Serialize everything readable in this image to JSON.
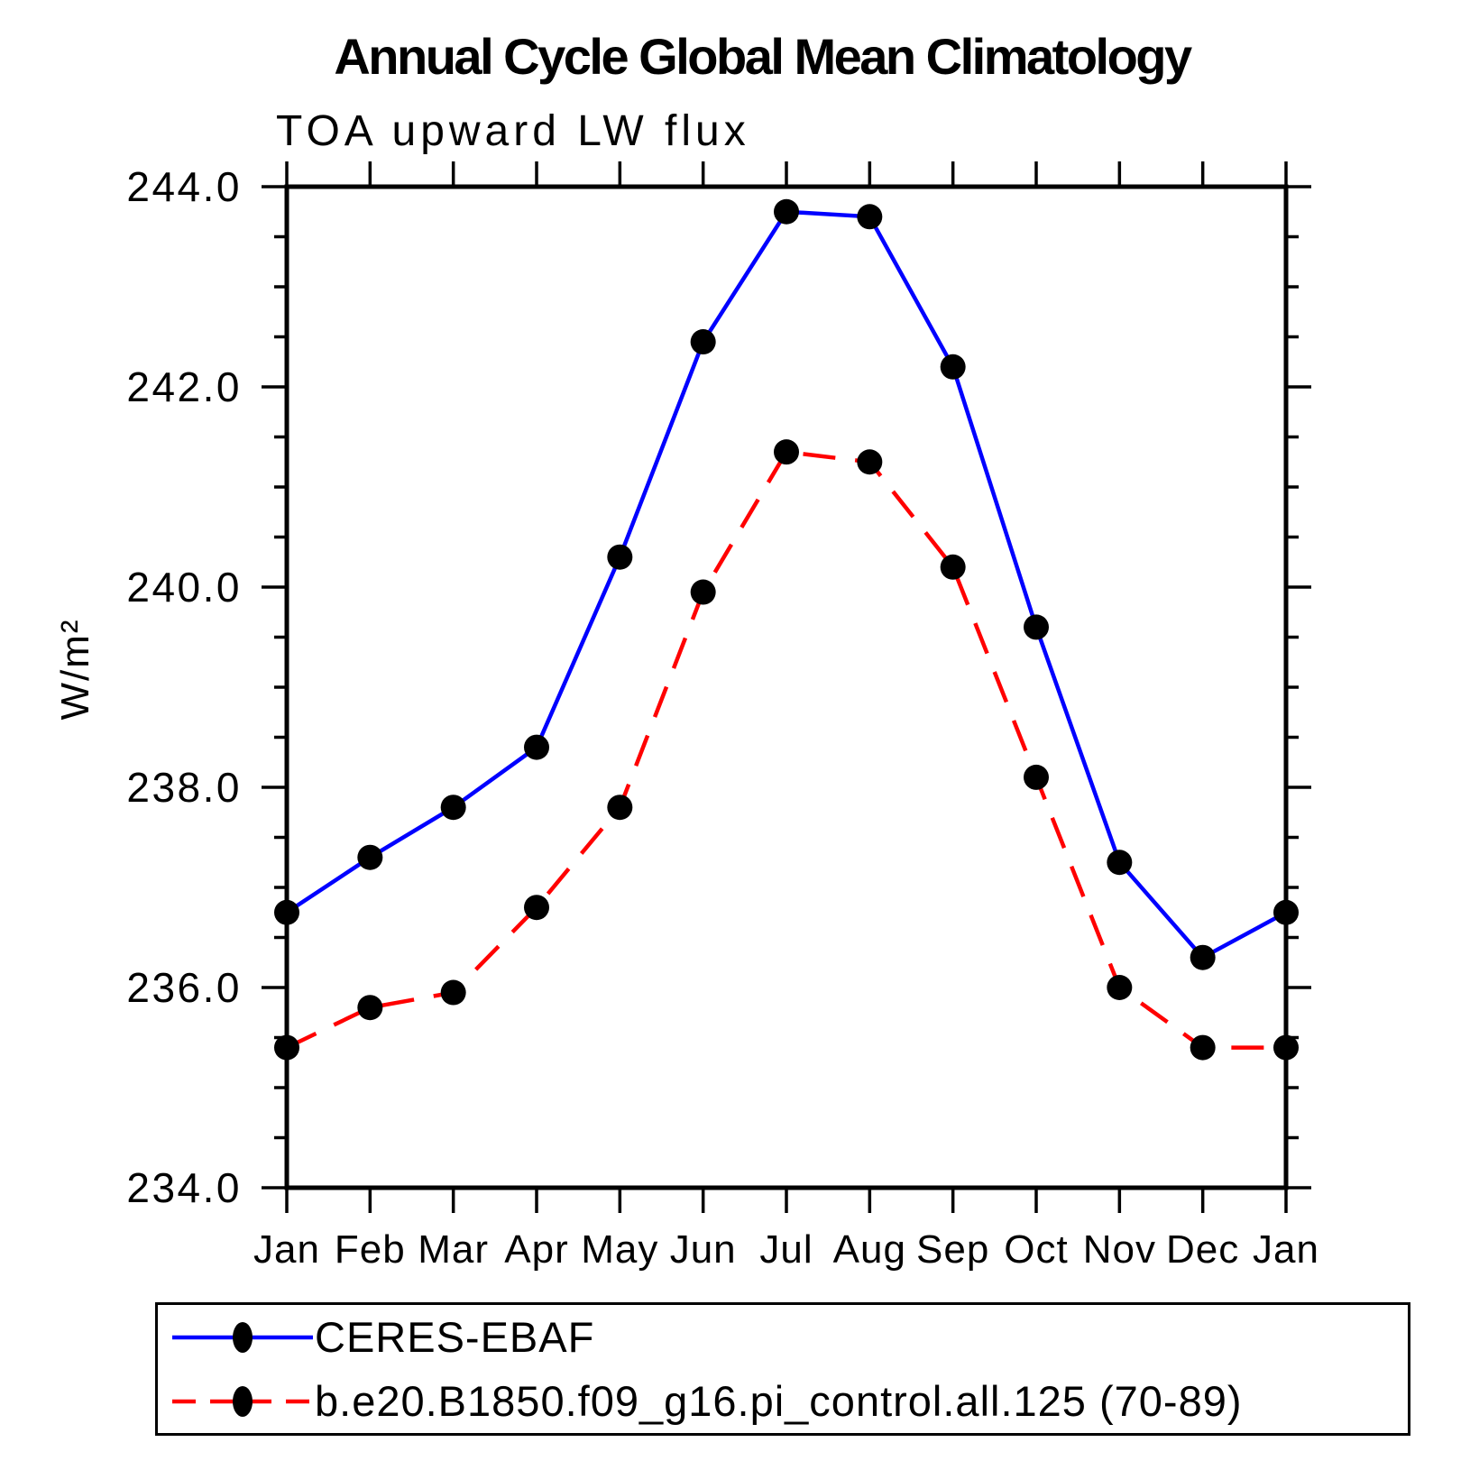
{
  "title": "Annual Cycle Global Mean Climatology",
  "subtitle": "TOA upward LW flux",
  "chart_data": {
    "type": "line",
    "categories": [
      "Jan",
      "Feb",
      "Mar",
      "Apr",
      "May",
      "Jun",
      "Jul",
      "Aug",
      "Sep",
      "Oct",
      "Nov",
      "Dec",
      "Jan"
    ],
    "series": [
      {
        "name": "CERES-EBAF",
        "color": "#0000ff",
        "line_style": "solid",
        "marker": "filled-circle",
        "marker_color": "#000000",
        "values": [
          236.75,
          237.3,
          237.8,
          238.4,
          240.3,
          242.45,
          243.75,
          243.7,
          242.2,
          239.6,
          237.25,
          236.3,
          236.75
        ]
      },
      {
        "name": "b.e20.B1850.f09_g16.pi_control.all.125 (70-89)",
        "color": "#ff0000",
        "line_style": "dashed",
        "marker": "filled-circle",
        "marker_color": "#000000",
        "values": [
          235.4,
          235.8,
          235.95,
          236.8,
          237.8,
          239.95,
          241.35,
          241.25,
          240.2,
          238.1,
          236.0,
          235.4,
          235.4
        ]
      }
    ],
    "title": "Annual Cycle Global Mean Climatology",
    "subtitle": "TOA upward LW flux",
    "xlabel": "",
    "ylabel": "W/m²",
    "ylim": [
      234.0,
      244.0
    ],
    "y_major_ticks": [
      "234.0",
      "236.0",
      "238.0",
      "240.0",
      "242.0",
      "244.0"
    ],
    "y_major_step": 2.0,
    "y_minor_step": 0.5,
    "grid": false,
    "legend_position": "bottom-left"
  }
}
